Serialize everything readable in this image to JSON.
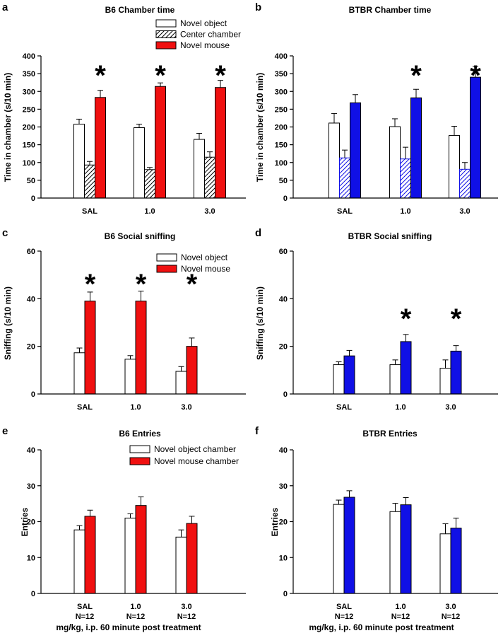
{
  "colors": {
    "red": "#f01010",
    "blue": "#1010e6",
    "white": "#ffffff",
    "black": "#000000"
  },
  "xlabel": "mg/kg, i.p. 60 minute post treatment",
  "chart_data": [
    {
      "letter": "a",
      "title": "B6 Chamber time",
      "type": "bar",
      "ylabel": "Time in chamber (s/10 min)",
      "ylim": [
        0,
        400
      ],
      "ticks": [
        "0",
        "50",
        "100",
        "150",
        "200",
        "250",
        "300",
        "350",
        "400"
      ],
      "categories": [
        "SAL",
        "1.0",
        "3.0"
      ],
      "category_sublabels": [
        "",
        "",
        ""
      ],
      "series": [
        {
          "name": "Novel object",
          "fill": "white",
          "values": [
            208,
            198,
            165
          ],
          "errors": [
            14,
            10,
            17
          ]
        },
        {
          "name": "Center chamber",
          "fill": "hatch-black",
          "values": [
            93,
            80,
            115
          ],
          "errors": [
            10,
            6,
            15
          ]
        },
        {
          "name": "Novel mouse",
          "fill": "red",
          "values": [
            283,
            314,
            311
          ],
          "errors": [
            20,
            10,
            20
          ]
        }
      ],
      "significant": [
        true,
        true,
        true
      ],
      "legend": "top-right"
    },
    {
      "letter": "b",
      "title": "BTBR Chamber time",
      "type": "bar",
      "ylabel": "Time in chamber (s/10 min)",
      "ylim": [
        0,
        400
      ],
      "ticks": [
        "0",
        "50",
        "100",
        "150",
        "200",
        "250",
        "300",
        "350",
        "400"
      ],
      "categories": [
        "SAL",
        "1.0",
        "3.0"
      ],
      "category_sublabels": [
        "",
        "",
        ""
      ],
      "series": [
        {
          "name": "Novel object",
          "fill": "white",
          "values": [
            211,
            201,
            176
          ],
          "errors": [
            27,
            22,
            26
          ]
        },
        {
          "name": "Center chamber",
          "fill": "hatch-blue",
          "values": [
            113,
            110,
            81
          ],
          "errors": [
            22,
            33,
            19
          ]
        },
        {
          "name": "Novel mouse",
          "fill": "blue",
          "values": [
            268,
            282,
            340
          ],
          "errors": [
            23,
            24,
            31
          ]
        }
      ],
      "significant": [
        false,
        true,
        true
      ],
      "legend": "none"
    },
    {
      "letter": "c",
      "title": "B6 Social sniffing",
      "type": "bar",
      "ylabel": "Sniffing (s/10 min)",
      "ylim": [
        0,
        60
      ],
      "ticks": [
        "0",
        "20",
        "40",
        "60"
      ],
      "categories": [
        "SAL",
        "1.0",
        "3.0"
      ],
      "category_sublabels": [
        "",
        "",
        ""
      ],
      "series": [
        {
          "name": "Novel object",
          "fill": "white",
          "values": [
            17.3,
            14.6,
            9.5
          ],
          "errors": [
            2,
            1.5,
            2
          ]
        },
        {
          "name": "Novel mouse",
          "fill": "red",
          "values": [
            39,
            39,
            20
          ],
          "errors": [
            3.8,
            4.2,
            3.5
          ]
        }
      ],
      "significant": [
        true,
        true,
        true
      ],
      "legend": "top-right"
    },
    {
      "letter": "d",
      "title": "BTBR Social sniffing",
      "type": "bar",
      "ylabel": "Sniffing (s/10 min)",
      "ylim": [
        0,
        60
      ],
      "ticks": [
        "0",
        "20",
        "40",
        "60"
      ],
      "categories": [
        "SAL",
        "1.0",
        "3.0"
      ],
      "category_sublabels": [
        "",
        "",
        ""
      ],
      "series": [
        {
          "name": "Novel object",
          "fill": "white",
          "values": [
            12.3,
            12.3,
            10.8
          ],
          "errors": [
            1.2,
            2,
            3.5
          ]
        },
        {
          "name": "Novel mouse",
          "fill": "blue",
          "values": [
            16,
            22,
            18
          ],
          "errors": [
            2.3,
            3,
            2.3
          ]
        }
      ],
      "significant": [
        false,
        true,
        true
      ],
      "legend": "none"
    },
    {
      "letter": "e",
      "title": "B6 Entries",
      "type": "bar",
      "ylabel": "Entries",
      "ylim": [
        0,
        40
      ],
      "ticks": [
        "0",
        "10",
        "20",
        "30",
        "40"
      ],
      "categories": [
        "SAL",
        "1.0",
        "3.0"
      ],
      "category_sublabels": [
        "N=12",
        "N=12",
        "N=12"
      ],
      "series": [
        {
          "name": "Novel object chamber",
          "fill": "white",
          "values": [
            17.7,
            21,
            15.7
          ],
          "errors": [
            1.2,
            1.2,
            2
          ]
        },
        {
          "name": "Novel mouse chamber",
          "fill": "red",
          "values": [
            21.5,
            24.5,
            19.5
          ],
          "errors": [
            1.7,
            2.4,
            2
          ]
        }
      ],
      "significant": [
        false,
        false,
        false
      ],
      "legend": "top-right"
    },
    {
      "letter": "f",
      "title": "BTBR Entries",
      "type": "bar",
      "ylabel": "Entries",
      "ylim": [
        0,
        40
      ],
      "ticks": [
        "0",
        "10",
        "20",
        "30",
        "40"
      ],
      "categories": [
        "SAL",
        "1.0",
        "3.0"
      ],
      "category_sublabels": [
        "N=12",
        "N=12",
        "N=12"
      ],
      "series": [
        {
          "name": "Novel object chamber",
          "fill": "white",
          "values": [
            24.8,
            22.8,
            16.6
          ],
          "errors": [
            1.2,
            2.3,
            2.8
          ]
        },
        {
          "name": "Novel mouse chamber",
          "fill": "blue",
          "values": [
            26.8,
            24.7,
            18.2
          ],
          "errors": [
            1.8,
            2,
            2.8
          ]
        }
      ],
      "significant": [
        false,
        false,
        false
      ],
      "legend": "none"
    }
  ]
}
